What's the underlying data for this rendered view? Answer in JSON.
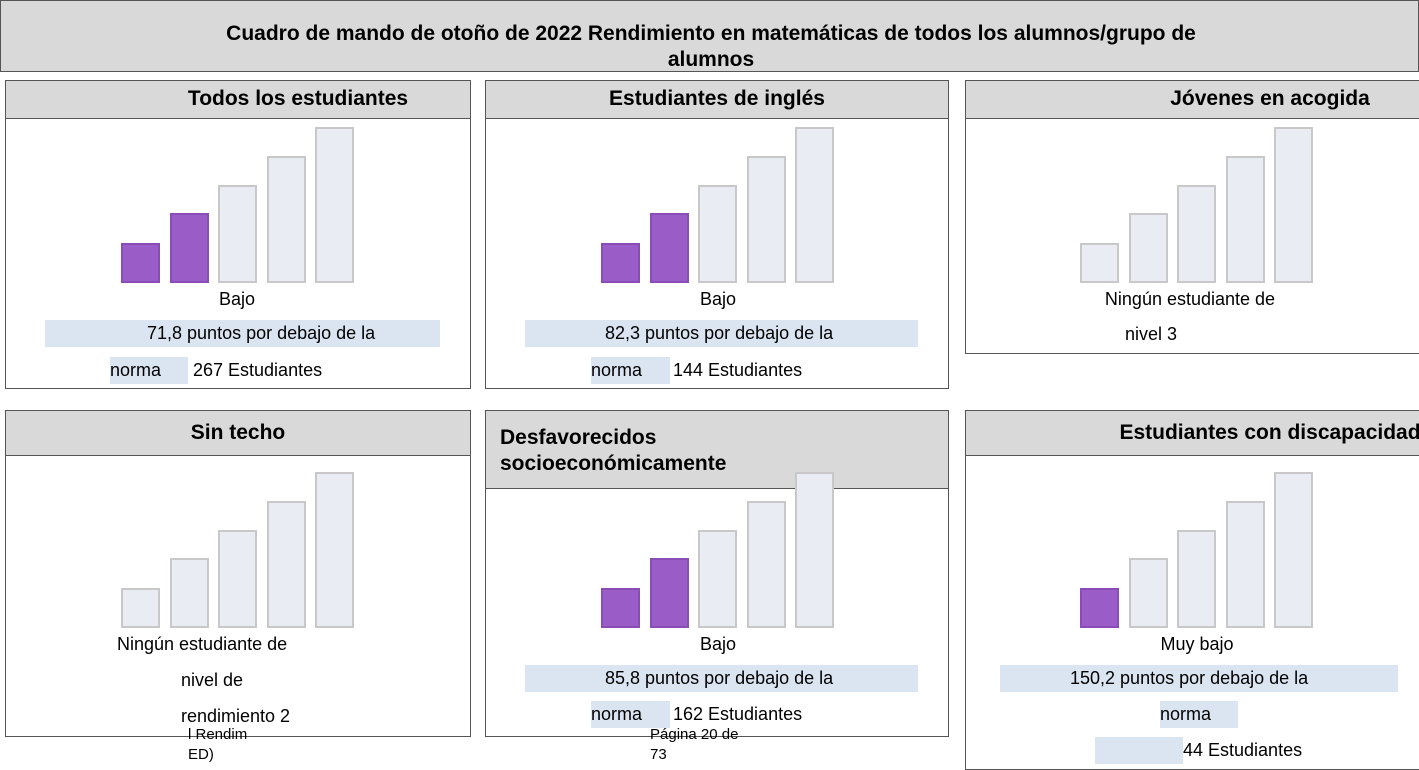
{
  "title": "Cuadro de mando de otoño de 2022 Rendimiento en matemáticas de todos los alumnos/grupo de alumnos",
  "panels": [
    {
      "heading": "Todos los estudiantes",
      "lines": [
        "Bajo",
        "71,8 puntos por debajo de la",
        "norma",
        "267 Estudiantes"
      ]
    },
    {
      "heading": "Estudiantes de inglés",
      "lines": [
        "Bajo",
        "82,3 puntos por debajo de la",
        "norma",
        "144 Estudiantes"
      ]
    },
    {
      "heading": "Jóvenes en acogida",
      "lines": [
        "Ningún estudiante de",
        "nivel 3"
      ]
    },
    {
      "heading": "Sin techo",
      "lines": [
        "Ningún estudiante de",
        "nivel de",
        "rendimiento 2"
      ]
    },
    {
      "heading": "Desfavorecidos socioeconómicamente",
      "lines": [
        "Bajo",
        "85,8 puntos por debajo de la",
        "norma",
        "162 Estudiantes"
      ]
    },
    {
      "heading": "Estudiantes con discapacidad",
      "lines": [
        "Muy bajo",
        "150,2 puntos por debajo de la",
        "norma",
        "44 Estudiantes"
      ]
    }
  ],
  "footer": {
    "left": [
      "l Rendim",
      "ED)"
    ],
    "right": [
      "Página 20 de",
      "73"
    ]
  }
}
